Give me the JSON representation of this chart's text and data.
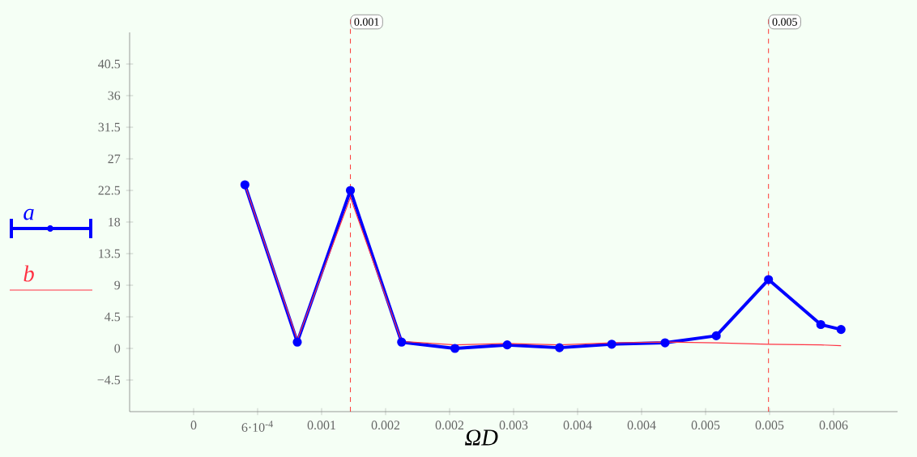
{
  "chart_data": {
    "type": "line",
    "xlabel": "ΩD",
    "x": [
      0.000481,
      0.000972,
      0.00147,
      0.00195,
      0.00245,
      0.00294,
      0.00343,
      0.00392,
      0.00442,
      0.0049,
      0.00539,
      0.00588,
      0.00607
    ],
    "series": [
      {
        "name": "a",
        "color": "#0000ff",
        "marker": "circle",
        "values": [
          23.3,
          0.9,
          22.5,
          0.9,
          0,
          0.5,
          0.1,
          0.6,
          0.8,
          1.8,
          9.8,
          3.4,
          2.7
        ]
      },
      {
        "name": "b",
        "color": "#ff3344",
        "marker": "none",
        "values": [
          23.3,
          1.2,
          21.5,
          1.0,
          0.5,
          0.7,
          0.5,
          0.8,
          0.9,
          0.8,
          0.6,
          0.5,
          0.4
        ]
      }
    ],
    "xlim": [
      -0.0006,
      0.0066
    ],
    "ylim": [
      -9,
      45
    ],
    "xticks": [
      {
        "value": 0,
        "label": "0"
      },
      {
        "value": 0.0006,
        "label": "6·10$^{-4}$"
      },
      {
        "value": 0.0012,
        "label": "0.001"
      },
      {
        "value": 0.0018,
        "label": "0.002"
      },
      {
        "value": 0.0024,
        "label": "0.002"
      },
      {
        "value": 0.003,
        "label": "0.003"
      },
      {
        "value": 0.0036,
        "label": "0.004"
      },
      {
        "value": 0.0042,
        "label": "0.004"
      },
      {
        "value": 0.0048,
        "label": "0.005"
      },
      {
        "value": 0.0054,
        "label": "0.005"
      },
      {
        "value": 0.006,
        "label": "0.006"
      }
    ],
    "yticks": [
      {
        "value": -4.5,
        "label": "−4.5"
      },
      0,
      4.5,
      9,
      13.5,
      18,
      22.5,
      27,
      31.5,
      36,
      40.5
    ],
    "ref_lines": [
      {
        "axis": "x",
        "value": 0.00147,
        "label": "0.001",
        "color": "#ff0000",
        "line_style": "dashed"
      },
      {
        "axis": "x",
        "value": 0.00539,
        "label": "0.005",
        "color": "#ff0000",
        "line_style": "dashed"
      }
    ],
    "legend": "left",
    "grid": false,
    "line_style": "solid"
  }
}
